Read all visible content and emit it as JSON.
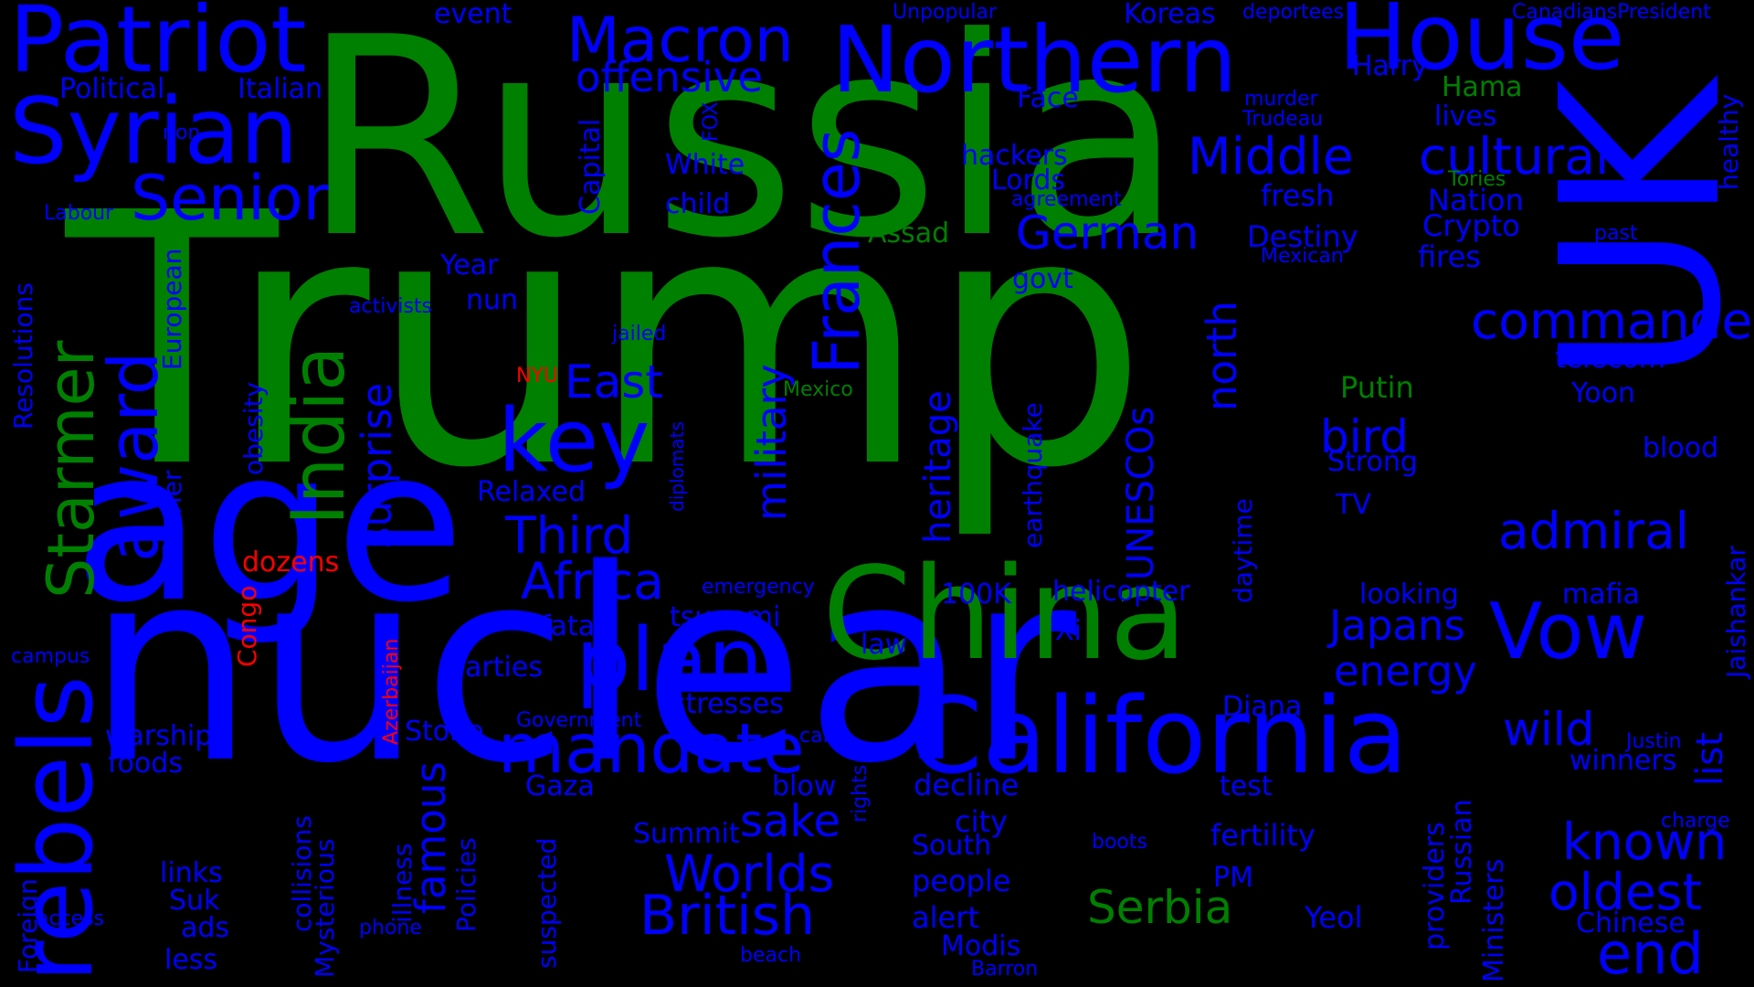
{
  "colors": {
    "background": "#000000",
    "blue": "#0000ff",
    "green": "#008000",
    "red": "#ff0000"
  },
  "words": [
    {
      "text": "Trump",
      "color": "green"
    },
    {
      "text": "Russia",
      "color": "green"
    },
    {
      "text": "nuclear",
      "color": "blue"
    },
    {
      "text": "age",
      "color": "blue"
    },
    {
      "text": "UK",
      "color": "blue"
    },
    {
      "text": "China",
      "color": "green"
    },
    {
      "text": "California",
      "color": "blue"
    },
    {
      "text": "Patriot",
      "color": "blue"
    },
    {
      "text": "Northern",
      "color": "blue"
    },
    {
      "text": "House",
      "color": "blue"
    },
    {
      "text": "Syrian",
      "color": "blue"
    },
    {
      "text": "rebels",
      "color": "blue"
    },
    {
      "text": "key",
      "color": "blue"
    },
    {
      "text": "plan",
      "color": "blue"
    },
    {
      "text": "mandate",
      "color": "blue"
    },
    {
      "text": "Vow",
      "color": "blue"
    },
    {
      "text": "award",
      "color": "blue"
    },
    {
      "text": "Starmer",
      "color": "green"
    },
    {
      "text": "India",
      "color": "green"
    },
    {
      "text": "Macron",
      "color": "blue"
    },
    {
      "text": "Senior",
      "color": "blue"
    },
    {
      "text": "Frances",
      "color": "blue"
    },
    {
      "text": "Middle",
      "color": "blue"
    },
    {
      "text": "cultural",
      "color": "blue"
    },
    {
      "text": "commander",
      "color": "blue"
    },
    {
      "text": "admiral",
      "color": "blue"
    },
    {
      "text": "known",
      "color": "blue"
    },
    {
      "text": "oldest",
      "color": "blue"
    },
    {
      "text": "end",
      "color": "blue"
    },
    {
      "text": "British",
      "color": "blue"
    },
    {
      "text": "Worlds",
      "color": "blue"
    },
    {
      "text": "Serbia",
      "color": "green"
    },
    {
      "text": "Africa",
      "color": "blue"
    },
    {
      "text": "Third",
      "color": "blue"
    },
    {
      "text": "East",
      "color": "blue"
    },
    {
      "text": "German",
      "color": "blue"
    },
    {
      "text": "surprise",
      "color": "blue"
    },
    {
      "text": "offensive",
      "color": "blue"
    },
    {
      "text": "military",
      "color": "blue"
    },
    {
      "text": "north",
      "color": "blue"
    },
    {
      "text": "bird",
      "color": "blue"
    },
    {
      "text": "Japans",
      "color": "blue"
    },
    {
      "text": "energy",
      "color": "blue"
    },
    {
      "text": "wild",
      "color": "blue"
    },
    {
      "text": "sake",
      "color": "blue"
    },
    {
      "text": "famous",
      "color": "blue"
    },
    {
      "text": "heritage",
      "color": "blue"
    },
    {
      "text": "UNESCOs",
      "color": "blue"
    },
    {
      "text": "Destiny",
      "color": "blue"
    },
    {
      "text": "fresh",
      "color": "blue"
    },
    {
      "text": "Nation",
      "color": "blue"
    },
    {
      "text": "Crypto",
      "color": "blue"
    },
    {
      "text": "fires",
      "color": "blue"
    },
    {
      "text": "Assad",
      "color": "green"
    },
    {
      "text": "Putin",
      "color": "green"
    },
    {
      "text": "Strong",
      "color": "blue"
    },
    {
      "text": "tsunami",
      "color": "blue"
    },
    {
      "text": "helicopter",
      "color": "blue"
    },
    {
      "text": "100K",
      "color": "blue"
    },
    {
      "text": "Xi",
      "color": "blue"
    },
    {
      "text": "fatal",
      "color": "blue"
    },
    {
      "text": "law",
      "color": "blue"
    },
    {
      "text": "parties",
      "color": "blue"
    },
    {
      "text": "stresses",
      "color": "blue"
    },
    {
      "text": "Diana",
      "color": "blue"
    },
    {
      "text": "fertility",
      "color": "blue"
    },
    {
      "text": "test",
      "color": "blue"
    },
    {
      "text": "decline",
      "color": "blue"
    },
    {
      "text": "city",
      "color": "blue"
    },
    {
      "text": "South",
      "color": "blue"
    },
    {
      "text": "people",
      "color": "blue"
    },
    {
      "text": "alert",
      "color": "blue"
    },
    {
      "text": "Modis",
      "color": "blue"
    },
    {
      "text": "PM",
      "color": "blue"
    },
    {
      "text": "Yeol",
      "color": "blue"
    },
    {
      "text": "Summit",
      "color": "blue"
    },
    {
      "text": "blow",
      "color": "blue"
    },
    {
      "text": "Gaza",
      "color": "blue"
    },
    {
      "text": "Stone",
      "color": "blue"
    },
    {
      "text": "warship",
      "color": "blue"
    },
    {
      "text": "foods",
      "color": "blue"
    },
    {
      "text": "links",
      "color": "blue"
    },
    {
      "text": "Suk",
      "color": "blue"
    },
    {
      "text": "ads",
      "color": "blue"
    },
    {
      "text": "less",
      "color": "blue"
    },
    {
      "text": "Mysterious",
      "color": "blue"
    },
    {
      "text": "collisions",
      "color": "blue"
    },
    {
      "text": "illness",
      "color": "blue"
    },
    {
      "text": "Policies",
      "color": "blue"
    },
    {
      "text": "suspected",
      "color": "blue"
    },
    {
      "text": "Foreign",
      "color": "blue"
    },
    {
      "text": "access",
      "color": "blue"
    },
    {
      "text": "phone",
      "color": "blue"
    },
    {
      "text": "beach",
      "color": "blue"
    },
    {
      "text": "Barron",
      "color": "blue"
    },
    {
      "text": "boots",
      "color": "blue"
    },
    {
      "text": "rights",
      "color": "blue"
    },
    {
      "text": "calls",
      "color": "blue"
    },
    {
      "text": "Government",
      "color": "blue"
    },
    {
      "text": "emergency",
      "color": "blue"
    },
    {
      "text": "dozens",
      "color": "red"
    },
    {
      "text": "Congo",
      "color": "red"
    },
    {
      "text": "Azerbaijan",
      "color": "red"
    },
    {
      "text": "NYU",
      "color": "red"
    },
    {
      "text": "Mexico",
      "color": "green"
    },
    {
      "text": "Tories",
      "color": "green"
    },
    {
      "text": "Hama",
      "color": "green"
    },
    {
      "text": "Relaxed",
      "color": "blue"
    },
    {
      "text": "diplomats",
      "color": "blue"
    },
    {
      "text": "jailed",
      "color": "blue"
    },
    {
      "text": "activists",
      "color": "blue"
    },
    {
      "text": "nun",
      "color": "blue"
    },
    {
      "text": "Year",
      "color": "blue"
    },
    {
      "text": "obesity",
      "color": "blue"
    },
    {
      "text": "Barrier",
      "color": "blue"
    },
    {
      "text": "European",
      "color": "blue"
    },
    {
      "text": "Resolutions",
      "color": "blue"
    },
    {
      "text": "Labour",
      "color": "blue"
    },
    {
      "text": "non",
      "color": "blue"
    },
    {
      "text": "Political",
      "color": "blue"
    },
    {
      "text": "Italian",
      "color": "blue"
    },
    {
      "text": "event",
      "color": "blue"
    },
    {
      "text": "Unpopular",
      "color": "blue"
    },
    {
      "text": "Koreas",
      "color": "blue"
    },
    {
      "text": "deportees",
      "color": "blue"
    },
    {
      "text": "CanadiansPresident",
      "color": "blue"
    },
    {
      "text": "Harry",
      "color": "blue"
    },
    {
      "text": "murder",
      "color": "blue"
    },
    {
      "text": "Trudeau",
      "color": "blue"
    },
    {
      "text": "lives",
      "color": "blue"
    },
    {
      "text": "Face",
      "color": "blue"
    },
    {
      "text": "Capital",
      "color": "blue"
    },
    {
      "text": "FOX",
      "color": "blue"
    },
    {
      "text": "White",
      "color": "blue"
    },
    {
      "text": "child",
      "color": "blue"
    },
    {
      "text": "hackers",
      "color": "blue"
    },
    {
      "text": "Lords",
      "color": "blue"
    },
    {
      "text": "agreement",
      "color": "blue"
    },
    {
      "text": "govt",
      "color": "blue"
    },
    {
      "text": "Mexican",
      "color": "blue"
    },
    {
      "text": "healthy",
      "color": "blue"
    },
    {
      "text": "past",
      "color": "blue"
    },
    {
      "text": "telecom",
      "color": "blue"
    },
    {
      "text": "Yoon",
      "color": "blue"
    },
    {
      "text": "blood",
      "color": "blue"
    },
    {
      "text": "TV",
      "color": "blue"
    },
    {
      "text": "daytime",
      "color": "blue"
    },
    {
      "text": "earthquake",
      "color": "blue"
    },
    {
      "text": "looking",
      "color": "blue"
    },
    {
      "text": "mafia",
      "color": "blue"
    },
    {
      "text": "Jaishankar",
      "color": "blue"
    },
    {
      "text": "list",
      "color": "blue"
    },
    {
      "text": "Justin",
      "color": "blue"
    },
    {
      "text": "winners",
      "color": "blue"
    },
    {
      "text": "charge",
      "color": "blue"
    },
    {
      "text": "Chinese",
      "color": "blue"
    },
    {
      "text": "Russian",
      "color": "blue"
    },
    {
      "text": "providers",
      "color": "blue"
    },
    {
      "text": "Ministers",
      "color": "blue"
    },
    {
      "text": "campus",
      "color": "blue"
    }
  ]
}
